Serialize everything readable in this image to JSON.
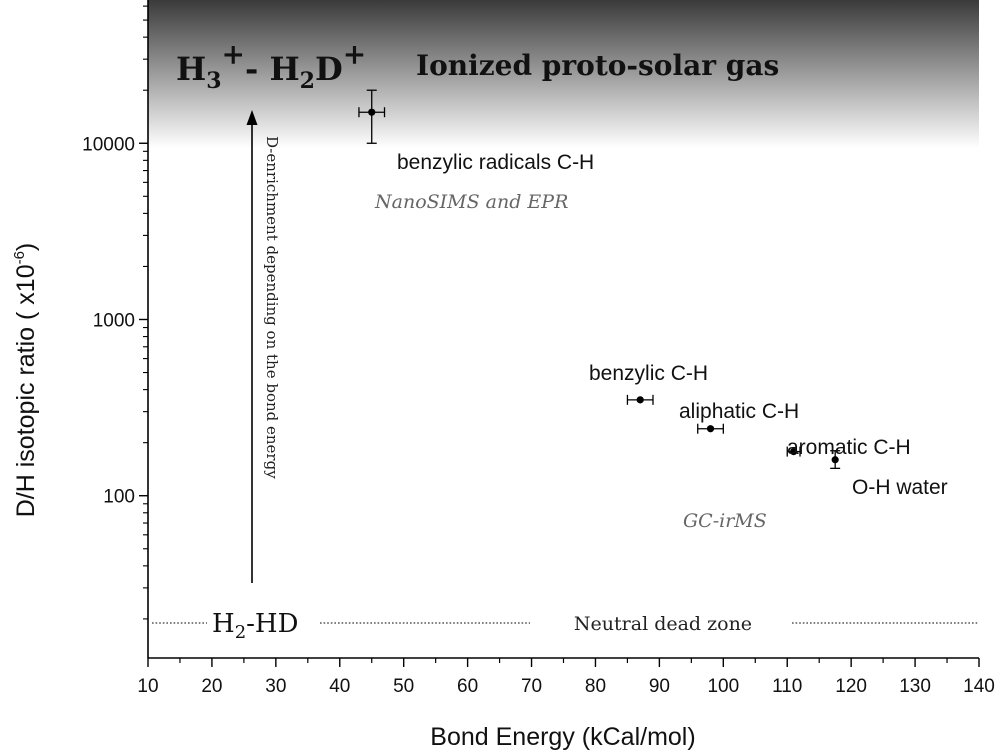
{
  "chart_data": {
    "type": "scatter",
    "xlabel": "Bond Energy (kCal/mol)",
    "ylabel": "D/H isotopic ratio ( x10",
    "ylabel_exp": "-6",
    "ylabel_close": ")",
    "x_scale": "linear",
    "y_scale": "log",
    "xlim": [
      10,
      140
    ],
    "ylim": [
      12,
      65000
    ],
    "x_ticks": [
      10,
      20,
      30,
      40,
      50,
      60,
      70,
      80,
      90,
      100,
      110,
      120,
      130,
      140
    ],
    "y_ticks": [
      100,
      1000,
      10000
    ],
    "points": [
      {
        "label": "benzylic radicals C-H",
        "x": 45,
        "y": 15000,
        "x_err": 2,
        "y_err_low": 5000,
        "y_err_high": 5000
      },
      {
        "label": "benzylic C-H",
        "x": 87,
        "y": 350,
        "x_err": 2,
        "y_err_low": 0,
        "y_err_high": 0
      },
      {
        "label": "aliphatic C-H",
        "x": 98,
        "y": 240,
        "x_err": 2,
        "y_err_low": 0,
        "y_err_high": 0
      },
      {
        "label": "aromatic C-H",
        "x": 111,
        "y": 178,
        "x_err": 1,
        "y_err_low": 0,
        "y_err_high": 0
      },
      {
        "label": "O-H water",
        "x": 117.5,
        "y": 160,
        "x_err": 0,
        "y_err_low": 17,
        "y_err_high": 20
      }
    ],
    "annotations": {
      "method_top": "NanoSIMS and EPR",
      "method_bottom": "GC-irMS",
      "banner_text": "Ionized proto-solar gas",
      "arrow_text": "D-enrichment depending on the bond energy",
      "dead_zone_text": "Neutral dead zone"
    },
    "ions": {
      "h3_base": "H",
      "h3_sub": "3",
      "h3_sup": "+",
      "dash": "- H",
      "h2d_sub": "2",
      "h2d_base": "D",
      "h2d_sup": "+",
      "h2hd_base": "H",
      "h2hd_sub": "2",
      "h2hd_rest": "-HD"
    },
    "colors": {
      "banner_top": "#3a3a3a",
      "banner_bottom": "#ffffff",
      "points": "#000000",
      "method_text": "#666666"
    }
  }
}
